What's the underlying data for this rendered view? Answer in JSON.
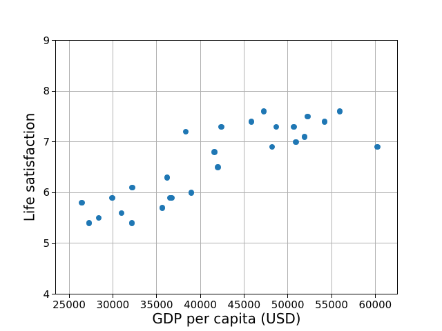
{
  "chart_data": {
    "type": "scatter",
    "title": "",
    "xlabel": "GDP per capita (USD)",
    "ylabel": "Life satisfaction",
    "xlim": [
      23500,
      62500
    ],
    "ylim": [
      4,
      9
    ],
    "x_ticks": [
      25000,
      30000,
      35000,
      40000,
      45000,
      50000,
      55000,
      60000
    ],
    "y_ticks": [
      4,
      5,
      6,
      7,
      8,
      9
    ],
    "grid": true,
    "legend": "none",
    "marker_color": "#1f77b4",
    "grid_color": "#b0b0b0",
    "spine_color": "#000000",
    "marker_diameter_px": 8.4,
    "points": [
      [
        26456,
        5.8
      ],
      [
        27287,
        5.4
      ],
      [
        28385,
        5.5
      ],
      [
        29932,
        5.9
      ],
      [
        31008,
        5.6
      ],
      [
        32181,
        5.4
      ],
      [
        32238,
        6.1
      ],
      [
        35638,
        5.7
      ],
      [
        36215,
        6.3
      ],
      [
        36548,
        5.9
      ],
      [
        36732,
        5.9
      ],
      [
        38341,
        7.2
      ],
      [
        38992,
        6.0
      ],
      [
        41627,
        6.8
      ],
      [
        42026,
        6.5
      ],
      [
        42404,
        7.3
      ],
      [
        45857,
        7.4
      ],
      [
        47261,
        7.6
      ],
      [
        48210,
        6.9
      ],
      [
        48698,
        7.3
      ],
      [
        50683,
        7.3
      ],
      [
        50922,
        7.0
      ],
      [
        51936,
        7.1
      ],
      [
        52280,
        7.5
      ],
      [
        54210,
        7.4
      ],
      [
        55938,
        7.6
      ],
      [
        60236,
        6.9
      ]
    ]
  }
}
